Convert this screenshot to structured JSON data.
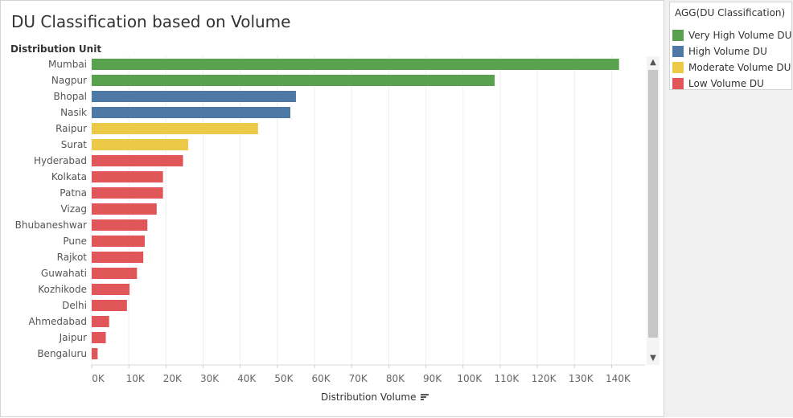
{
  "title": "DU Classification based on Volume",
  "legend": {
    "title": "AGG(DU Classification)",
    "items": [
      {
        "label": "Very High Volume DU",
        "color": "#59a14f"
      },
      {
        "label": "High Volume DU",
        "color": "#4e79a7"
      },
      {
        "label": "Moderate Volume DU",
        "color": "#edc948"
      },
      {
        "label": "Low Volume DU",
        "color": "#e15759"
      }
    ]
  },
  "chart_data": {
    "type": "bar",
    "orientation": "horizontal",
    "title": "DU Classification based on Volume",
    "row_header": "Distribution Unit",
    "xlabel": "Distribution Volume",
    "xlim": [
      0,
      150000
    ],
    "x_ticks": [
      0,
      10000,
      20000,
      30000,
      40000,
      50000,
      60000,
      70000,
      80000,
      90000,
      100000,
      110000,
      120000,
      130000,
      140000
    ],
    "x_tick_labels": [
      "0K",
      "10K",
      "20K",
      "30K",
      "40K",
      "50K",
      "60K",
      "70K",
      "80K",
      "90K",
      "100K",
      "110K",
      "120K",
      "130K",
      "140K"
    ],
    "categories": [
      "Mumbai",
      "Nagpur",
      "Bhopal",
      "Nasik",
      "Raipur",
      "Surat",
      "Hyderabad",
      "Kolkata",
      "Patna",
      "Vizag",
      "Bhubaneshwar",
      "Pune",
      "Rajkot",
      "Guwahati",
      "Kozhikode",
      "Delhi",
      "Ahmedabad",
      "Jaipur",
      "Bengaluru"
    ],
    "values": [
      142000,
      108500,
      55000,
      53500,
      44800,
      26000,
      24600,
      19200,
      19200,
      17500,
      15000,
      14300,
      13900,
      12200,
      10200,
      9500,
      4700,
      3800,
      1600
    ],
    "classes": [
      "Very High Volume DU",
      "Very High Volume DU",
      "High Volume DU",
      "High Volume DU",
      "Moderate Volume DU",
      "Moderate Volume DU",
      "Low Volume DU",
      "Low Volume DU",
      "Low Volume DU",
      "Low Volume DU",
      "Low Volume DU",
      "Low Volume DU",
      "Low Volume DU",
      "Low Volume DU",
      "Low Volume DU",
      "Low Volume DU",
      "Low Volume DU",
      "Low Volume DU",
      "Low Volume DU"
    ]
  },
  "icons": {
    "scroll_up": "▲",
    "scroll_down": "▼",
    "sort": "sort-descending-icon"
  }
}
